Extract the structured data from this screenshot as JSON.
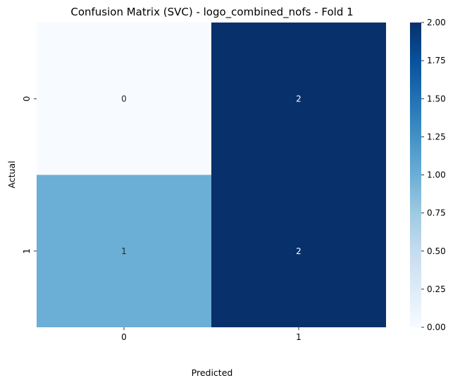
{
  "chart_data": {
    "type": "heatmap",
    "title": "Confusion Matrix (SVC) - logo_combined_nofs - Fold 1",
    "xlabel": "Predicted",
    "ylabel": "Actual",
    "x_categories": [
      "0",
      "1"
    ],
    "y_categories": [
      "0",
      "1"
    ],
    "values": [
      [
        0,
        2
      ],
      [
        1,
        2
      ]
    ],
    "colormap": "Blues",
    "colorbar": {
      "range": [
        0,
        2
      ],
      "ticks": [
        "0.00",
        "0.25",
        "0.50",
        "0.75",
        "1.00",
        "1.25",
        "1.50",
        "1.75",
        "2.00"
      ]
    },
    "colors": {
      "min": "#f7fbff",
      "mid": "#6baed6",
      "max": "#08306b"
    }
  }
}
